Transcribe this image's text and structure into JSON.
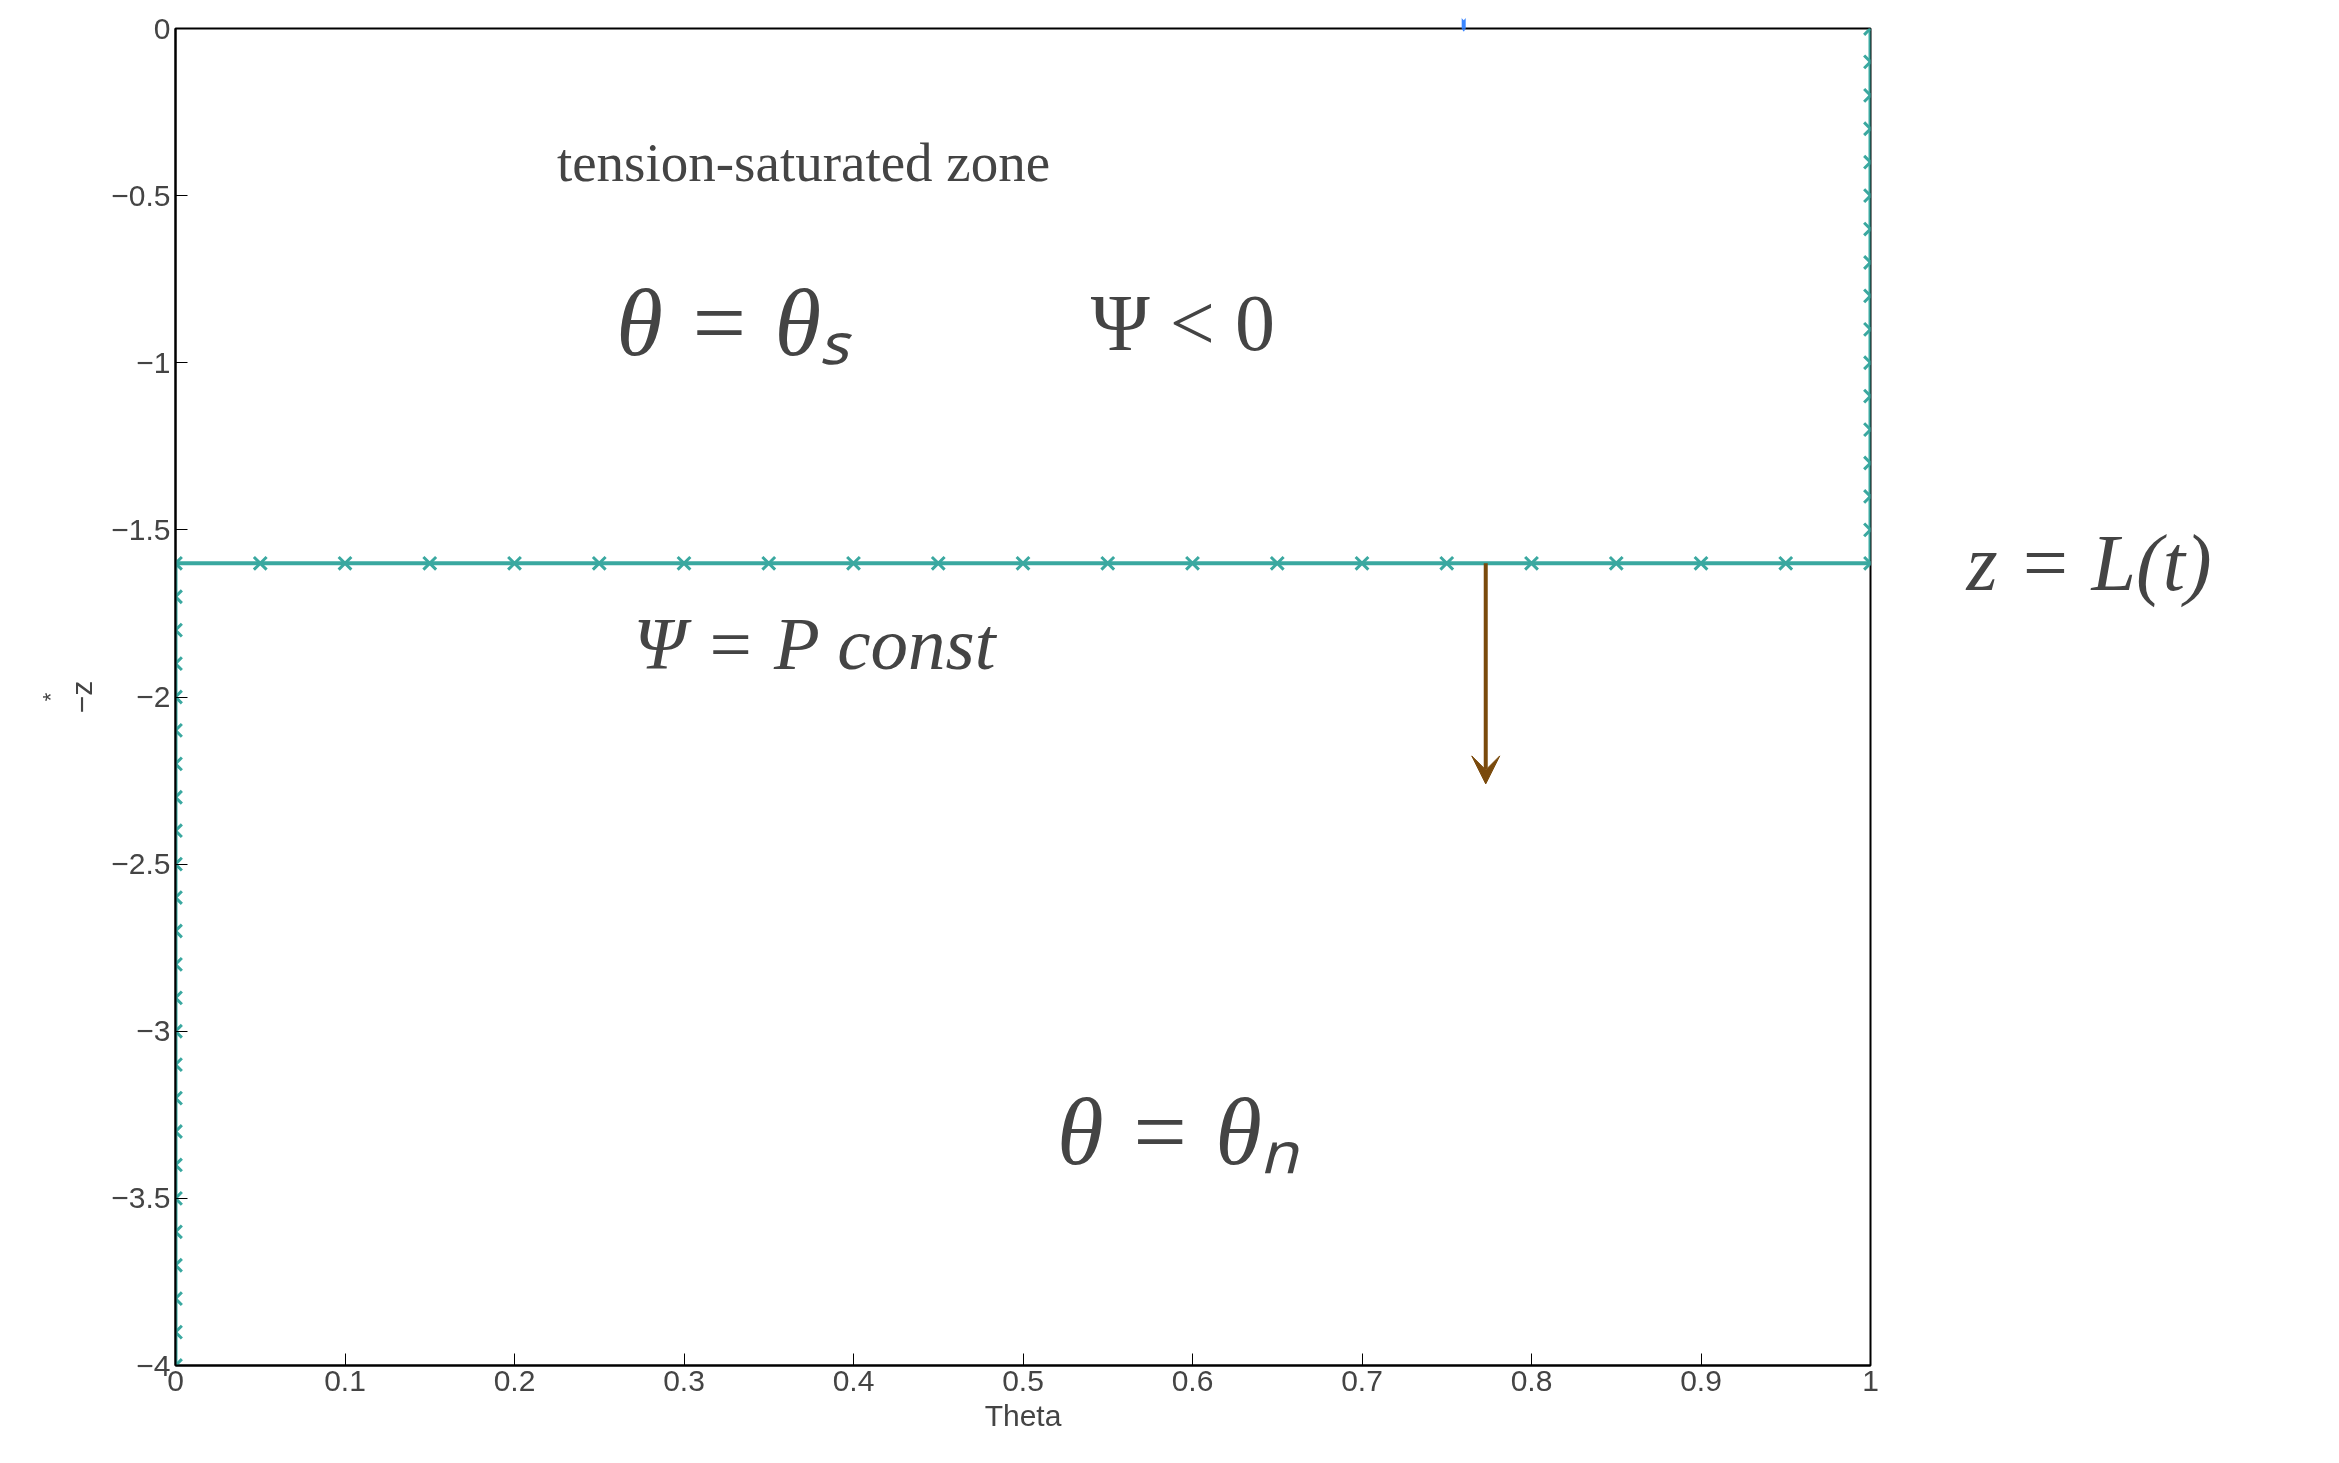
{
  "chart_data": {
    "type": "line",
    "xlabel": "Theta",
    "ylabel": "−z$^{*}$",
    "xlim": [
      0,
      1
    ],
    "ylim": [
      -4,
      0
    ],
    "xticks": [
      0,
      0.1,
      0.2,
      0.3,
      0.4,
      0.5,
      0.6,
      0.7,
      0.8,
      0.9,
      1
    ],
    "yticks": [
      -4,
      -3.5,
      -3,
      -2.5,
      -2,
      -1.5,
      -1,
      -0.5,
      0
    ],
    "grid": false,
    "marker": "cross",
    "line_style": "solid",
    "series": [
      {
        "color": "#3aa8a0",
        "x": [
          1,
          1,
          1,
          1,
          1,
          1,
          1,
          1,
          1,
          1,
          1,
          1,
          1,
          1,
          1,
          1,
          1,
          0.95,
          0.9,
          0.85,
          0.8,
          0.75,
          0.7,
          0.65,
          0.6,
          0.55,
          0.5,
          0.45,
          0.4,
          0.35,
          0.3,
          0.25,
          0.2,
          0.15,
          0.1,
          0.05,
          0,
          0,
          0,
          0,
          0,
          0,
          0,
          0,
          0,
          0,
          0,
          0,
          0,
          0,
          0,
          0,
          0,
          0,
          0,
          0,
          0,
          0,
          0,
          0,
          0
        ],
        "values": [
          0,
          -0.1,
          -0.2,
          -0.3,
          -0.4,
          -0.5,
          -0.6,
          -0.7,
          -0.8,
          -0.9,
          -1,
          -1.1,
          -1.2,
          -1.3,
          -1.4,
          -1.5,
          -1.6,
          -1.6,
          -1.6,
          -1.6,
          -1.6,
          -1.6,
          -1.6,
          -1.6,
          -1.6,
          -1.6,
          -1.6,
          -1.6,
          -1.6,
          -1.6,
          -1.6,
          -1.6,
          -1.6,
          -1.6,
          -1.6,
          -1.6,
          -1.6,
          -1.7,
          -1.8,
          -1.9,
          -2,
          -2.1,
          -2.2,
          -2.3,
          -2.4,
          -2.5,
          -2.6,
          -2.7,
          -2.8,
          -2.9,
          -3,
          -3.1,
          -3.2,
          -3.3,
          -3.4,
          -3.5,
          -3.6,
          -3.7,
          -3.8,
          -3.9,
          -4
        ]
      }
    ],
    "ref_lines": [
      {
        "axis": "y",
        "value": -1.6,
        "label": "z = L(t)",
        "color": "#3aa8a0"
      }
    ],
    "annotations": [
      "tension-saturated zone",
      "θ = θₛ",
      "Ψ < 0",
      "Ψ = P  const",
      "θ = θₙ"
    ]
  }
}
